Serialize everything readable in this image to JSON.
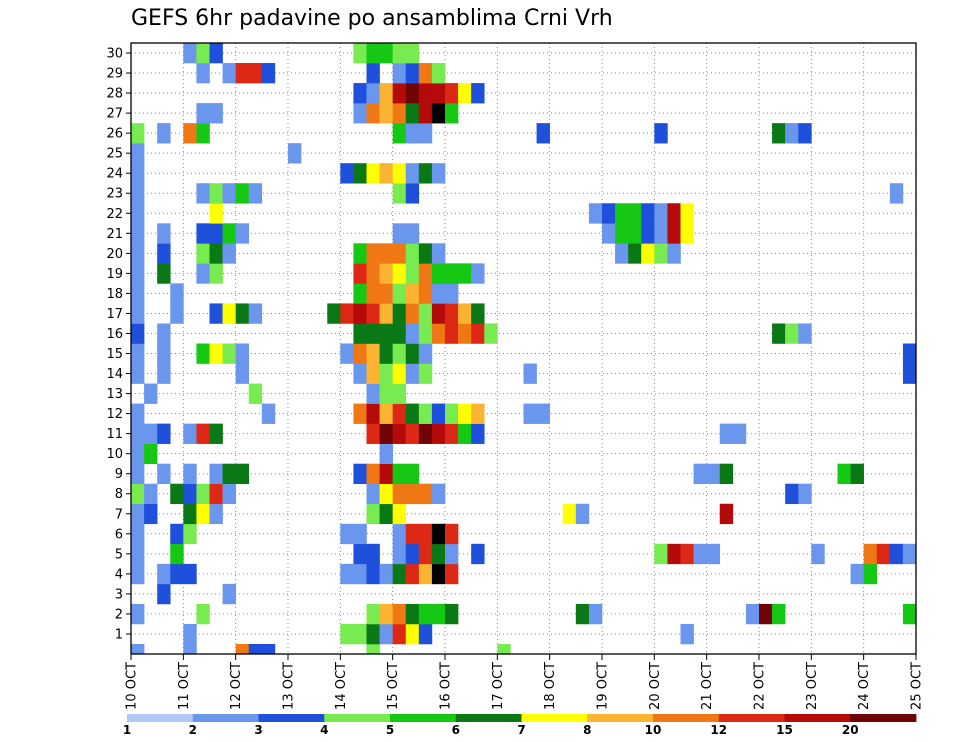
{
  "chart_data": {
    "type": "heatmap",
    "title": "GEFS 6hr padavine po ansamblima Crni Vrh",
    "xlabel": "",
    "ylabel": "",
    "x_start": "2024-10-10 00:00",
    "x_step_hours": 6,
    "x_ticks": [
      "10 OCT",
      "11 OCT",
      "12 OCT",
      "13 OCT",
      "14 OCT",
      "15 OCT",
      "16 OCT",
      "17 OCT",
      "18 OCT",
      "19 OCT",
      "20 OCT",
      "21 OCT",
      "22 OCT",
      "23 OCT",
      "24 OCT",
      "25 OCT"
    ],
    "y_ticks": [
      1,
      2,
      3,
      4,
      5,
      6,
      7,
      8,
      9,
      10,
      11,
      12,
      13,
      14,
      15,
      16,
      17,
      18,
      19,
      20,
      21,
      22,
      23,
      24,
      25,
      26,
      27,
      28,
      29,
      30
    ],
    "ylim": [
      0,
      30
    ],
    "grid": true,
    "colorbar": {
      "colors": [
        "#b4c8f5",
        "#6b96ee",
        "#1e50dc",
        "#78eb50",
        "#14c814",
        "#0a7814",
        "#ffff00",
        "#fab432",
        "#f07814",
        "#dc2814",
        "#b40a0a",
        "#700404"
      ],
      "labels": [
        "1",
        "2",
        "3",
        "4",
        "5",
        "6",
        "7",
        "8",
        "10",
        "12",
        "15",
        "20"
      ]
    },
    "cells": [
      [
        0,
        0,
        1
      ],
      [
        4,
        0,
        1
      ],
      [
        8,
        0,
        8
      ],
      [
        9,
        0,
        2
      ],
      [
        10,
        0,
        2
      ],
      [
        18,
        0,
        3
      ],
      [
        28,
        0,
        3
      ],
      [
        4,
        1,
        1
      ],
      [
        16,
        1,
        3
      ],
      [
        17,
        1,
        3
      ],
      [
        18,
        1,
        5
      ],
      [
        19,
        1,
        1
      ],
      [
        20,
        1,
        9
      ],
      [
        21,
        1,
        6
      ],
      [
        22,
        1,
        2
      ],
      [
        42,
        1,
        1
      ],
      [
        0,
        2,
        1
      ],
      [
        5,
        2,
        3
      ],
      [
        18,
        2,
        3
      ],
      [
        19,
        2,
        7
      ],
      [
        20,
        2,
        8
      ],
      [
        21,
        2,
        5
      ],
      [
        22,
        2,
        4
      ],
      [
        23,
        2,
        4
      ],
      [
        24,
        2,
        5
      ],
      [
        34,
        2,
        5
      ],
      [
        35,
        2,
        1
      ],
      [
        47,
        2,
        1
      ],
      [
        48,
        2,
        11
      ],
      [
        49,
        2,
        4
      ],
      [
        59,
        2,
        4
      ],
      [
        2,
        3,
        2
      ],
      [
        7,
        3,
        1
      ],
      [
        0,
        4,
        1
      ],
      [
        2,
        4,
        1
      ],
      [
        3,
        4,
        2
      ],
      [
        4,
        4,
        2
      ],
      [
        16,
        4,
        1
      ],
      [
        17,
        4,
        1
      ],
      [
        18,
        4,
        2
      ],
      [
        19,
        4,
        1
      ],
      [
        20,
        4,
        5
      ],
      [
        21,
        4,
        9
      ],
      [
        22,
        4,
        7
      ],
      [
        23,
        4,
        12
      ],
      [
        24,
        4,
        9
      ],
      [
        55,
        4,
        1
      ],
      [
        56,
        4,
        4
      ],
      [
        0,
        5,
        1
      ],
      [
        3,
        5,
        4
      ],
      [
        17,
        5,
        2
      ],
      [
        18,
        5,
        2
      ],
      [
        20,
        5,
        1
      ],
      [
        21,
        5,
        2
      ],
      [
        22,
        5,
        9
      ],
      [
        23,
        5,
        5
      ],
      [
        24,
        5,
        1
      ],
      [
        26,
        5,
        2
      ],
      [
        40,
        5,
        3
      ],
      [
        41,
        5,
        10
      ],
      [
        42,
        5,
        9
      ],
      [
        43,
        5,
        1
      ],
      [
        44,
        5,
        1
      ],
      [
        52,
        5,
        1
      ],
      [
        56,
        5,
        8
      ],
      [
        57,
        5,
        9
      ],
      [
        58,
        5,
        2
      ],
      [
        59,
        5,
        1
      ],
      [
        0,
        6,
        1
      ],
      [
        3,
        6,
        2
      ],
      [
        4,
        6,
        3
      ],
      [
        16,
        6,
        1
      ],
      [
        17,
        6,
        1
      ],
      [
        20,
        6,
        1
      ],
      [
        21,
        6,
        9
      ],
      [
        22,
        6,
        9
      ],
      [
        23,
        6,
        12
      ],
      [
        24,
        6,
        9
      ],
      [
        0,
        7,
        1
      ],
      [
        1,
        7,
        2
      ],
      [
        4,
        7,
        5
      ],
      [
        5,
        7,
        6
      ],
      [
        6,
        7,
        1
      ],
      [
        18,
        7,
        3
      ],
      [
        19,
        7,
        5
      ],
      [
        20,
        7,
        6
      ],
      [
        33,
        7,
        6
      ],
      [
        34,
        7,
        1
      ],
      [
        45,
        7,
        10
      ],
      [
        0,
        8,
        3
      ],
      [
        1,
        8,
        1
      ],
      [
        3,
        8,
        5
      ],
      [
        4,
        8,
        2
      ],
      [
        5,
        8,
        3
      ],
      [
        6,
        8,
        9
      ],
      [
        7,
        8,
        1
      ],
      [
        18,
        8,
        1
      ],
      [
        19,
        8,
        6
      ],
      [
        20,
        8,
        8
      ],
      [
        21,
        8,
        8
      ],
      [
        22,
        8,
        8
      ],
      [
        23,
        8,
        1
      ],
      [
        50,
        8,
        2
      ],
      [
        51,
        8,
        1
      ],
      [
        0,
        9,
        1
      ],
      [
        2,
        9,
        1
      ],
      [
        4,
        9,
        1
      ],
      [
        6,
        9,
        1
      ],
      [
        7,
        9,
        5
      ],
      [
        8,
        9,
        5
      ],
      [
        17,
        9,
        2
      ],
      [
        18,
        9,
        8
      ],
      [
        19,
        9,
        10
      ],
      [
        20,
        9,
        4
      ],
      [
        21,
        9,
        4
      ],
      [
        43,
        9,
        1
      ],
      [
        44,
        9,
        1
      ],
      [
        45,
        9,
        5
      ],
      [
        54,
        9,
        4
      ],
      [
        55,
        9,
        5
      ],
      [
        0,
        10,
        1
      ],
      [
        1,
        10,
        4
      ],
      [
        19,
        10,
        1
      ],
      [
        0,
        11,
        1
      ],
      [
        1,
        11,
        1
      ],
      [
        2,
        11,
        2
      ],
      [
        4,
        11,
        1
      ],
      [
        5,
        11,
        9
      ],
      [
        6,
        11,
        5
      ],
      [
        18,
        11,
        9
      ],
      [
        19,
        11,
        11
      ],
      [
        20,
        11,
        10
      ],
      [
        21,
        11,
        9
      ],
      [
        22,
        11,
        11
      ],
      [
        23,
        11,
        10
      ],
      [
        24,
        11,
        9
      ],
      [
        25,
        11,
        4
      ],
      [
        26,
        11,
        2
      ],
      [
        45,
        11,
        1
      ],
      [
        46,
        11,
        1
      ],
      [
        0,
        12,
        1
      ],
      [
        10,
        12,
        1
      ],
      [
        17,
        12,
        8
      ],
      [
        18,
        12,
        10
      ],
      [
        19,
        12,
        7
      ],
      [
        20,
        12,
        9
      ],
      [
        21,
        12,
        5
      ],
      [
        22,
        12,
        3
      ],
      [
        23,
        12,
        2
      ],
      [
        24,
        12,
        3
      ],
      [
        25,
        12,
        6
      ],
      [
        26,
        12,
        7
      ],
      [
        30,
        12,
        1
      ],
      [
        31,
        12,
        1
      ],
      [
        1,
        13,
        1
      ],
      [
        9,
        13,
        3
      ],
      [
        18,
        13,
        1
      ],
      [
        19,
        13,
        3
      ],
      [
        20,
        13,
        3
      ],
      [
        0,
        14,
        1
      ],
      [
        2,
        14,
        1
      ],
      [
        8,
        14,
        1
      ],
      [
        17,
        14,
        1
      ],
      [
        18,
        14,
        7
      ],
      [
        19,
        14,
        3
      ],
      [
        20,
        14,
        6
      ],
      [
        21,
        14,
        1
      ],
      [
        22,
        14,
        3
      ],
      [
        30,
        14,
        1
      ],
      [
        59,
        14,
        2
      ],
      [
        0,
        15,
        1
      ],
      [
        2,
        15,
        1
      ],
      [
        5,
        15,
        4
      ],
      [
        6,
        15,
        6
      ],
      [
        7,
        15,
        3
      ],
      [
        8,
        15,
        1
      ],
      [
        16,
        15,
        1
      ],
      [
        17,
        15,
        8
      ],
      [
        18,
        15,
        7
      ],
      [
        19,
        15,
        5
      ],
      [
        20,
        15,
        3
      ],
      [
        21,
        15,
        5
      ],
      [
        22,
        15,
        1
      ],
      [
        59,
        15,
        2
      ],
      [
        0,
        16,
        2
      ],
      [
        2,
        16,
        1
      ],
      [
        17,
        16,
        5
      ],
      [
        18,
        16,
        5
      ],
      [
        19,
        16,
        5
      ],
      [
        20,
        16,
        5
      ],
      [
        21,
        16,
        1
      ],
      [
        22,
        16,
        3
      ],
      [
        23,
        16,
        8
      ],
      [
        24,
        16,
        9
      ],
      [
        25,
        16,
        8
      ],
      [
        26,
        16,
        9
      ],
      [
        27,
        16,
        3
      ],
      [
        49,
        16,
        5
      ],
      [
        50,
        16,
        3
      ],
      [
        51,
        16,
        1
      ],
      [
        0,
        17,
        1
      ],
      [
        3,
        17,
        1
      ],
      [
        6,
        17,
        2
      ],
      [
        7,
        17,
        6
      ],
      [
        8,
        17,
        5
      ],
      [
        9,
        17,
        1
      ],
      [
        15,
        17,
        5
      ],
      [
        16,
        17,
        9
      ],
      [
        17,
        17,
        10
      ],
      [
        18,
        17,
        9
      ],
      [
        19,
        17,
        7
      ],
      [
        20,
        17,
        5
      ],
      [
        21,
        17,
        8
      ],
      [
        22,
        17,
        3
      ],
      [
        23,
        17,
        10
      ],
      [
        24,
        17,
        9
      ],
      [
        25,
        17,
        7
      ],
      [
        26,
        17,
        5
      ],
      [
        0,
        18,
        1
      ],
      [
        3,
        18,
        1
      ],
      [
        17,
        18,
        4
      ],
      [
        18,
        18,
        8
      ],
      [
        19,
        18,
        8
      ],
      [
        20,
        18,
        3
      ],
      [
        21,
        18,
        7
      ],
      [
        22,
        18,
        8
      ],
      [
        23,
        18,
        1
      ],
      [
        24,
        18,
        1
      ],
      [
        0,
        19,
        1
      ],
      [
        2,
        19,
        5
      ],
      [
        5,
        19,
        1
      ],
      [
        6,
        19,
        3
      ],
      [
        17,
        19,
        9
      ],
      [
        18,
        19,
        8
      ],
      [
        19,
        19,
        7
      ],
      [
        20,
        19,
        6
      ],
      [
        21,
        19,
        3
      ],
      [
        22,
        19,
        8
      ],
      [
        23,
        19,
        4
      ],
      [
        24,
        19,
        4
      ],
      [
        25,
        19,
        4
      ],
      [
        26,
        19,
        1
      ],
      [
        0,
        20,
        1
      ],
      [
        2,
        20,
        2
      ],
      [
        5,
        20,
        3
      ],
      [
        6,
        20,
        5
      ],
      [
        7,
        20,
        1
      ],
      [
        17,
        20,
        4
      ],
      [
        18,
        20,
        8
      ],
      [
        19,
        20,
        8
      ],
      [
        20,
        20,
        8
      ],
      [
        21,
        20,
        3
      ],
      [
        22,
        20,
        5
      ],
      [
        23,
        20,
        1
      ],
      [
        37,
        20,
        1
      ],
      [
        38,
        20,
        5
      ],
      [
        39,
        20,
        6
      ],
      [
        40,
        20,
        3
      ],
      [
        41,
        20,
        1
      ],
      [
        0,
        21,
        1
      ],
      [
        2,
        21,
        1
      ],
      [
        5,
        21,
        2
      ],
      [
        6,
        21,
        2
      ],
      [
        7,
        21,
        4
      ],
      [
        8,
        21,
        1
      ],
      [
        20,
        21,
        1
      ],
      [
        21,
        21,
        1
      ],
      [
        36,
        21,
        1
      ],
      [
        37,
        21,
        4
      ],
      [
        38,
        21,
        4
      ],
      [
        39,
        21,
        2
      ],
      [
        40,
        21,
        1
      ],
      [
        41,
        21,
        10
      ],
      [
        42,
        21,
        6
      ],
      [
        0,
        22,
        1
      ],
      [
        6,
        22,
        6
      ],
      [
        35,
        22,
        1
      ],
      [
        36,
        22,
        2
      ],
      [
        37,
        22,
        4
      ],
      [
        38,
        22,
        4
      ],
      [
        39,
        22,
        2
      ],
      [
        40,
        22,
        1
      ],
      [
        41,
        22,
        10
      ],
      [
        42,
        22,
        6
      ],
      [
        0,
        23,
        1
      ],
      [
        5,
        23,
        1
      ],
      [
        6,
        23,
        3
      ],
      [
        7,
        23,
        1
      ],
      [
        8,
        23,
        4
      ],
      [
        9,
        23,
        1
      ],
      [
        20,
        23,
        3
      ],
      [
        21,
        23,
        2
      ],
      [
        58,
        23,
        1
      ],
      [
        0,
        24,
        1
      ],
      [
        16,
        24,
        2
      ],
      [
        17,
        24,
        5
      ],
      [
        18,
        24,
        6
      ],
      [
        19,
        24,
        7
      ],
      [
        20,
        24,
        6
      ],
      [
        21,
        24,
        1
      ],
      [
        22,
        24,
        5
      ],
      [
        23,
        24,
        1
      ],
      [
        0,
        25,
        1
      ],
      [
        12,
        25,
        1
      ],
      [
        0,
        26,
        3
      ],
      [
        2,
        26,
        1
      ],
      [
        4,
        26,
        8
      ],
      [
        5,
        26,
        4
      ],
      [
        20,
        26,
        4
      ],
      [
        21,
        26,
        1
      ],
      [
        22,
        26,
        1
      ],
      [
        31,
        26,
        2
      ],
      [
        40,
        26,
        2
      ],
      [
        49,
        26,
        5
      ],
      [
        50,
        26,
        1
      ],
      [
        51,
        26,
        2
      ],
      [
        5,
        27,
        1
      ],
      [
        6,
        27,
        1
      ],
      [
        17,
        27,
        1
      ],
      [
        18,
        27,
        8
      ],
      [
        19,
        27,
        7
      ],
      [
        20,
        27,
        8
      ],
      [
        21,
        27,
        5
      ],
      [
        22,
        27,
        10
      ],
      [
        23,
        27,
        12
      ],
      [
        24,
        27,
        4
      ],
      [
        17,
        28,
        2
      ],
      [
        18,
        28,
        1
      ],
      [
        19,
        28,
        7
      ],
      [
        20,
        28,
        10
      ],
      [
        21,
        28,
        11
      ],
      [
        22,
        28,
        10
      ],
      [
        23,
        28,
        10
      ],
      [
        24,
        28,
        9
      ],
      [
        25,
        28,
        6
      ],
      [
        26,
        28,
        2
      ],
      [
        5,
        29,
        1
      ],
      [
        7,
        29,
        1
      ],
      [
        8,
        29,
        9
      ],
      [
        9,
        29,
        9
      ],
      [
        10,
        29,
        2
      ],
      [
        18,
        29,
        2
      ],
      [
        20,
        29,
        1
      ],
      [
        21,
        29,
        2
      ],
      [
        22,
        29,
        8
      ],
      [
        23,
        29,
        3
      ],
      [
        4,
        30,
        1
      ],
      [
        5,
        30,
        3
      ],
      [
        6,
        30,
        2
      ],
      [
        17,
        30,
        3
      ],
      [
        18,
        30,
        4
      ],
      [
        19,
        30,
        4
      ],
      [
        20,
        30,
        3
      ],
      [
        21,
        30,
        3
      ]
    ]
  }
}
